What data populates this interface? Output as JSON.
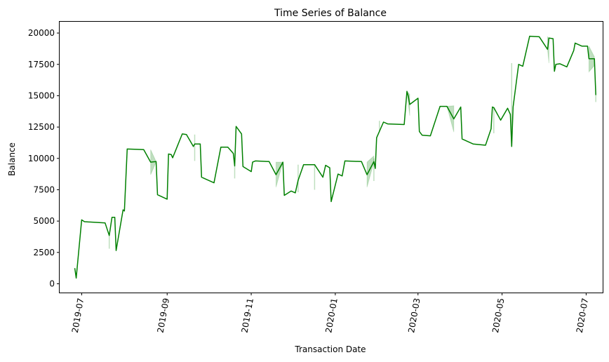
{
  "chart_data": {
    "type": "line",
    "title": "Time Series of Balance",
    "xlabel": "Transaction Date",
    "ylabel": "Balance",
    "xlim": [
      "2019-06-15",
      "2020-07-13"
    ],
    "ylim": [
      -700,
      20900
    ],
    "x_ticks": [
      "2019-07",
      "2019-09",
      "2019-11",
      "2020-01",
      "2020-03",
      "2020-05",
      "2020-07"
    ],
    "y_ticks": [
      0,
      2500,
      5000,
      7500,
      10000,
      12500,
      15000,
      17500,
      20000
    ],
    "grid": false,
    "legend": "none",
    "line_color": "#008000",
    "band_color": "#008000",
    "series": [
      {
        "points": [
          [
            "2019-06-26",
            1250
          ],
          [
            "2019-06-27",
            450
          ],
          [
            "2019-07-01",
            5100
          ],
          [
            "2019-07-03",
            4950
          ],
          [
            "2019-07-18",
            4850
          ],
          [
            "2019-07-21",
            3850
          ],
          [
            "2019-07-23",
            5300
          ],
          [
            "2019-07-25",
            5300
          ],
          [
            "2019-07-26",
            2650
          ],
          [
            "2019-07-31",
            5900
          ],
          [
            "2019-08-01",
            5800
          ],
          [
            "2019-08-03",
            10750
          ],
          [
            "2019-08-15",
            10700
          ],
          [
            "2019-08-20",
            9700
          ],
          [
            "2019-08-24",
            9750
          ],
          [
            "2019-08-25",
            7100
          ],
          [
            "2019-09-01",
            6750
          ],
          [
            "2019-09-02",
            10350
          ],
          [
            "2019-09-04",
            10300
          ],
          [
            "2019-09-05",
            10050
          ],
          [
            "2019-09-12",
            11950
          ],
          [
            "2019-09-15",
            11900
          ],
          [
            "2019-09-20",
            10950
          ],
          [
            "2019-09-21",
            11150
          ],
          [
            "2019-09-25",
            11150
          ],
          [
            "2019-09-26",
            8500
          ],
          [
            "2019-10-05",
            8050
          ],
          [
            "2019-10-10",
            10900
          ],
          [
            "2019-10-15",
            10900
          ],
          [
            "2019-10-19",
            10400
          ],
          [
            "2019-10-20",
            9400
          ],
          [
            "2019-10-21",
            12550
          ],
          [
            "2019-10-25",
            11950
          ],
          [
            "2019-10-26",
            9350
          ],
          [
            "2019-11-01",
            8950
          ],
          [
            "2019-11-02",
            9700
          ],
          [
            "2019-11-04",
            9800
          ],
          [
            "2019-11-14",
            9750
          ],
          [
            "2019-11-19",
            8700
          ],
          [
            "2019-11-24",
            9700
          ],
          [
            "2019-11-25",
            7050
          ],
          [
            "2019-11-30",
            7400
          ],
          [
            "2019-12-03",
            7250
          ],
          [
            "2019-12-05",
            8250
          ],
          [
            "2019-12-09",
            9500
          ],
          [
            "2019-12-17",
            9500
          ],
          [
            "2019-12-23",
            8500
          ],
          [
            "2019-12-25",
            9450
          ],
          [
            "2019-12-28",
            9250
          ],
          [
            "2019-12-29",
            6550
          ],
          [
            "2020-01-03",
            8750
          ],
          [
            "2020-01-06",
            8600
          ],
          [
            "2020-01-08",
            9800
          ],
          [
            "2020-01-20",
            9750
          ],
          [
            "2020-01-24",
            8700
          ],
          [
            "2020-01-29",
            9750
          ],
          [
            "2020-01-30",
            9200
          ],
          [
            "2020-01-31",
            11650
          ],
          [
            "2020-02-05",
            12900
          ],
          [
            "2020-02-08",
            12750
          ],
          [
            "2020-02-20",
            12700
          ],
          [
            "2020-02-22",
            15350
          ],
          [
            "2020-02-23",
            14950
          ],
          [
            "2020-02-24",
            14300
          ],
          [
            "2020-03-01",
            14800
          ],
          [
            "2020-03-02",
            12150
          ],
          [
            "2020-03-04",
            11850
          ],
          [
            "2020-03-10",
            11800
          ],
          [
            "2020-03-17",
            14150
          ],
          [
            "2020-03-22",
            14150
          ],
          [
            "2020-03-27",
            13150
          ],
          [
            "2020-04-01",
            14100
          ],
          [
            "2020-04-02",
            11550
          ],
          [
            "2020-04-10",
            11150
          ],
          [
            "2020-04-19",
            11050
          ],
          [
            "2020-04-23",
            12350
          ],
          [
            "2020-04-24",
            14100
          ],
          [
            "2020-04-25",
            14050
          ],
          [
            "2020-04-30",
            13050
          ],
          [
            "2020-05-05",
            14000
          ],
          [
            "2020-05-07",
            13500
          ],
          [
            "2020-05-08",
            10950
          ],
          [
            "2020-05-09",
            14100
          ],
          [
            "2020-05-13",
            17500
          ],
          [
            "2020-05-16",
            17350
          ],
          [
            "2020-05-21",
            19750
          ],
          [
            "2020-05-28",
            19700
          ],
          [
            "2020-06-03",
            18700
          ],
          [
            "2020-06-04",
            19600
          ],
          [
            "2020-06-07",
            19550
          ],
          [
            "2020-06-08",
            16950
          ],
          [
            "2020-06-09",
            17500
          ],
          [
            "2020-06-12",
            17550
          ],
          [
            "2020-06-17",
            17300
          ],
          [
            "2020-06-22",
            18600
          ],
          [
            "2020-06-23",
            19200
          ],
          [
            "2020-06-28",
            18950
          ],
          [
            "2020-07-02",
            18950
          ],
          [
            "2020-07-03",
            17950
          ],
          [
            "2020-07-07",
            17950
          ],
          [
            "2020-07-08",
            15050
          ]
        ],
        "bands": [
          {
            "x": [
              "2019-08-20",
              "2019-08-24"
            ],
            "low": [
              8700,
              9700
            ],
            "high": [
              10700,
              9750
            ]
          },
          {
            "x": [
              "2019-11-19",
              "2019-11-24"
            ],
            "low": [
              7700,
              9700
            ],
            "high": [
              9700,
              9700
            ]
          },
          {
            "x": [
              "2020-01-24",
              "2020-01-29"
            ],
            "low": [
              7700,
              9700
            ],
            "high": [
              9700,
              10200
            ]
          },
          {
            "x": [
              "2020-02-22",
              "2020-02-24"
            ],
            "low": [
              15350,
              13400
            ],
            "high": [
              15350,
              15100
            ]
          },
          {
            "x": [
              "2020-03-22",
              "2020-03-27"
            ],
            "low": [
              14150,
              12100
            ],
            "high": [
              14150,
              14200
            ]
          },
          {
            "x": [
              "2020-06-03",
              "2020-06-04"
            ],
            "low": [
              18700,
              17600
            ],
            "high": [
              19700,
              19600
            ]
          },
          {
            "x": [
              "2020-07-03",
              "2020-07-07"
            ],
            "low": [
              16900,
              17400
            ],
            "high": [
              18950,
              18100
            ]
          }
        ],
        "spikes": [
          {
            "x": "2019-07-21",
            "low": 2800,
            "high": 3850
          },
          {
            "x": "2019-09-21",
            "low": 9800,
            "high": 11900
          },
          {
            "x": "2019-10-20",
            "low": 8400,
            "high": 9400
          },
          {
            "x": "2019-12-05",
            "low": 7300,
            "high": 9500
          },
          {
            "x": "2019-12-17",
            "low": 7500,
            "high": 9500
          },
          {
            "x": "2020-01-29",
            "low": 8200,
            "high": 10000
          },
          {
            "x": "2020-02-02",
            "low": 12200,
            "high": 13000
          },
          {
            "x": "2020-04-25",
            "low": 12000,
            "high": 14100
          },
          {
            "x": "2020-05-08",
            "low": 11000,
            "high": 17600
          },
          {
            "x": "2020-07-08",
            "low": 14500,
            "high": 15100
          }
        ]
      }
    ]
  }
}
